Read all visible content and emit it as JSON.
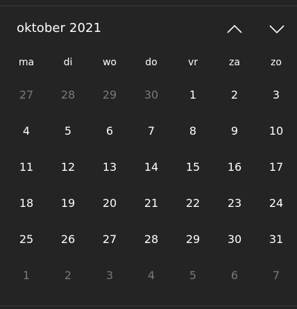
{
  "header": {
    "month_label": "oktober 2021",
    "prev_icon": "chevron-up-icon",
    "next_icon": "chevron-down-icon"
  },
  "weekdays": [
    "ma",
    "di",
    "wo",
    "do",
    "vr",
    "za",
    "zo"
  ],
  "weeks": [
    [
      {
        "d": "27",
        "o": true
      },
      {
        "d": "28",
        "o": true
      },
      {
        "d": "29",
        "o": true
      },
      {
        "d": "30",
        "o": true
      },
      {
        "d": "1",
        "o": false
      },
      {
        "d": "2",
        "o": false
      },
      {
        "d": "3",
        "o": false
      }
    ],
    [
      {
        "d": "4",
        "o": false
      },
      {
        "d": "5",
        "o": false
      },
      {
        "d": "6",
        "o": false
      },
      {
        "d": "7",
        "o": false
      },
      {
        "d": "8",
        "o": false
      },
      {
        "d": "9",
        "o": false
      },
      {
        "d": "10",
        "o": false
      }
    ],
    [
      {
        "d": "11",
        "o": false
      },
      {
        "d": "12",
        "o": false
      },
      {
        "d": "13",
        "o": false
      },
      {
        "d": "14",
        "o": false
      },
      {
        "d": "15",
        "o": false
      },
      {
        "d": "16",
        "o": false
      },
      {
        "d": "17",
        "o": false
      }
    ],
    [
      {
        "d": "18",
        "o": false
      },
      {
        "d": "19",
        "o": false
      },
      {
        "d": "20",
        "o": false
      },
      {
        "d": "21",
        "o": false
      },
      {
        "d": "22",
        "o": false
      },
      {
        "d": "23",
        "o": false
      },
      {
        "d": "24",
        "o": false
      }
    ],
    [
      {
        "d": "25",
        "o": false
      },
      {
        "d": "26",
        "o": false
      },
      {
        "d": "27",
        "o": false
      },
      {
        "d": "28",
        "o": false
      },
      {
        "d": "29",
        "o": false
      },
      {
        "d": "30",
        "o": false
      },
      {
        "d": "31",
        "o": false
      }
    ],
    [
      {
        "d": "1",
        "o": true
      },
      {
        "d": "2",
        "o": true
      },
      {
        "d": "3",
        "o": true
      },
      {
        "d": "4",
        "o": true
      },
      {
        "d": "5",
        "o": true
      },
      {
        "d": "6",
        "o": true
      },
      {
        "d": "7",
        "o": true
      }
    ]
  ],
  "colors": {
    "background": "#242424",
    "text": "#ffffff",
    "muted_text": "#7a7a7a"
  }
}
